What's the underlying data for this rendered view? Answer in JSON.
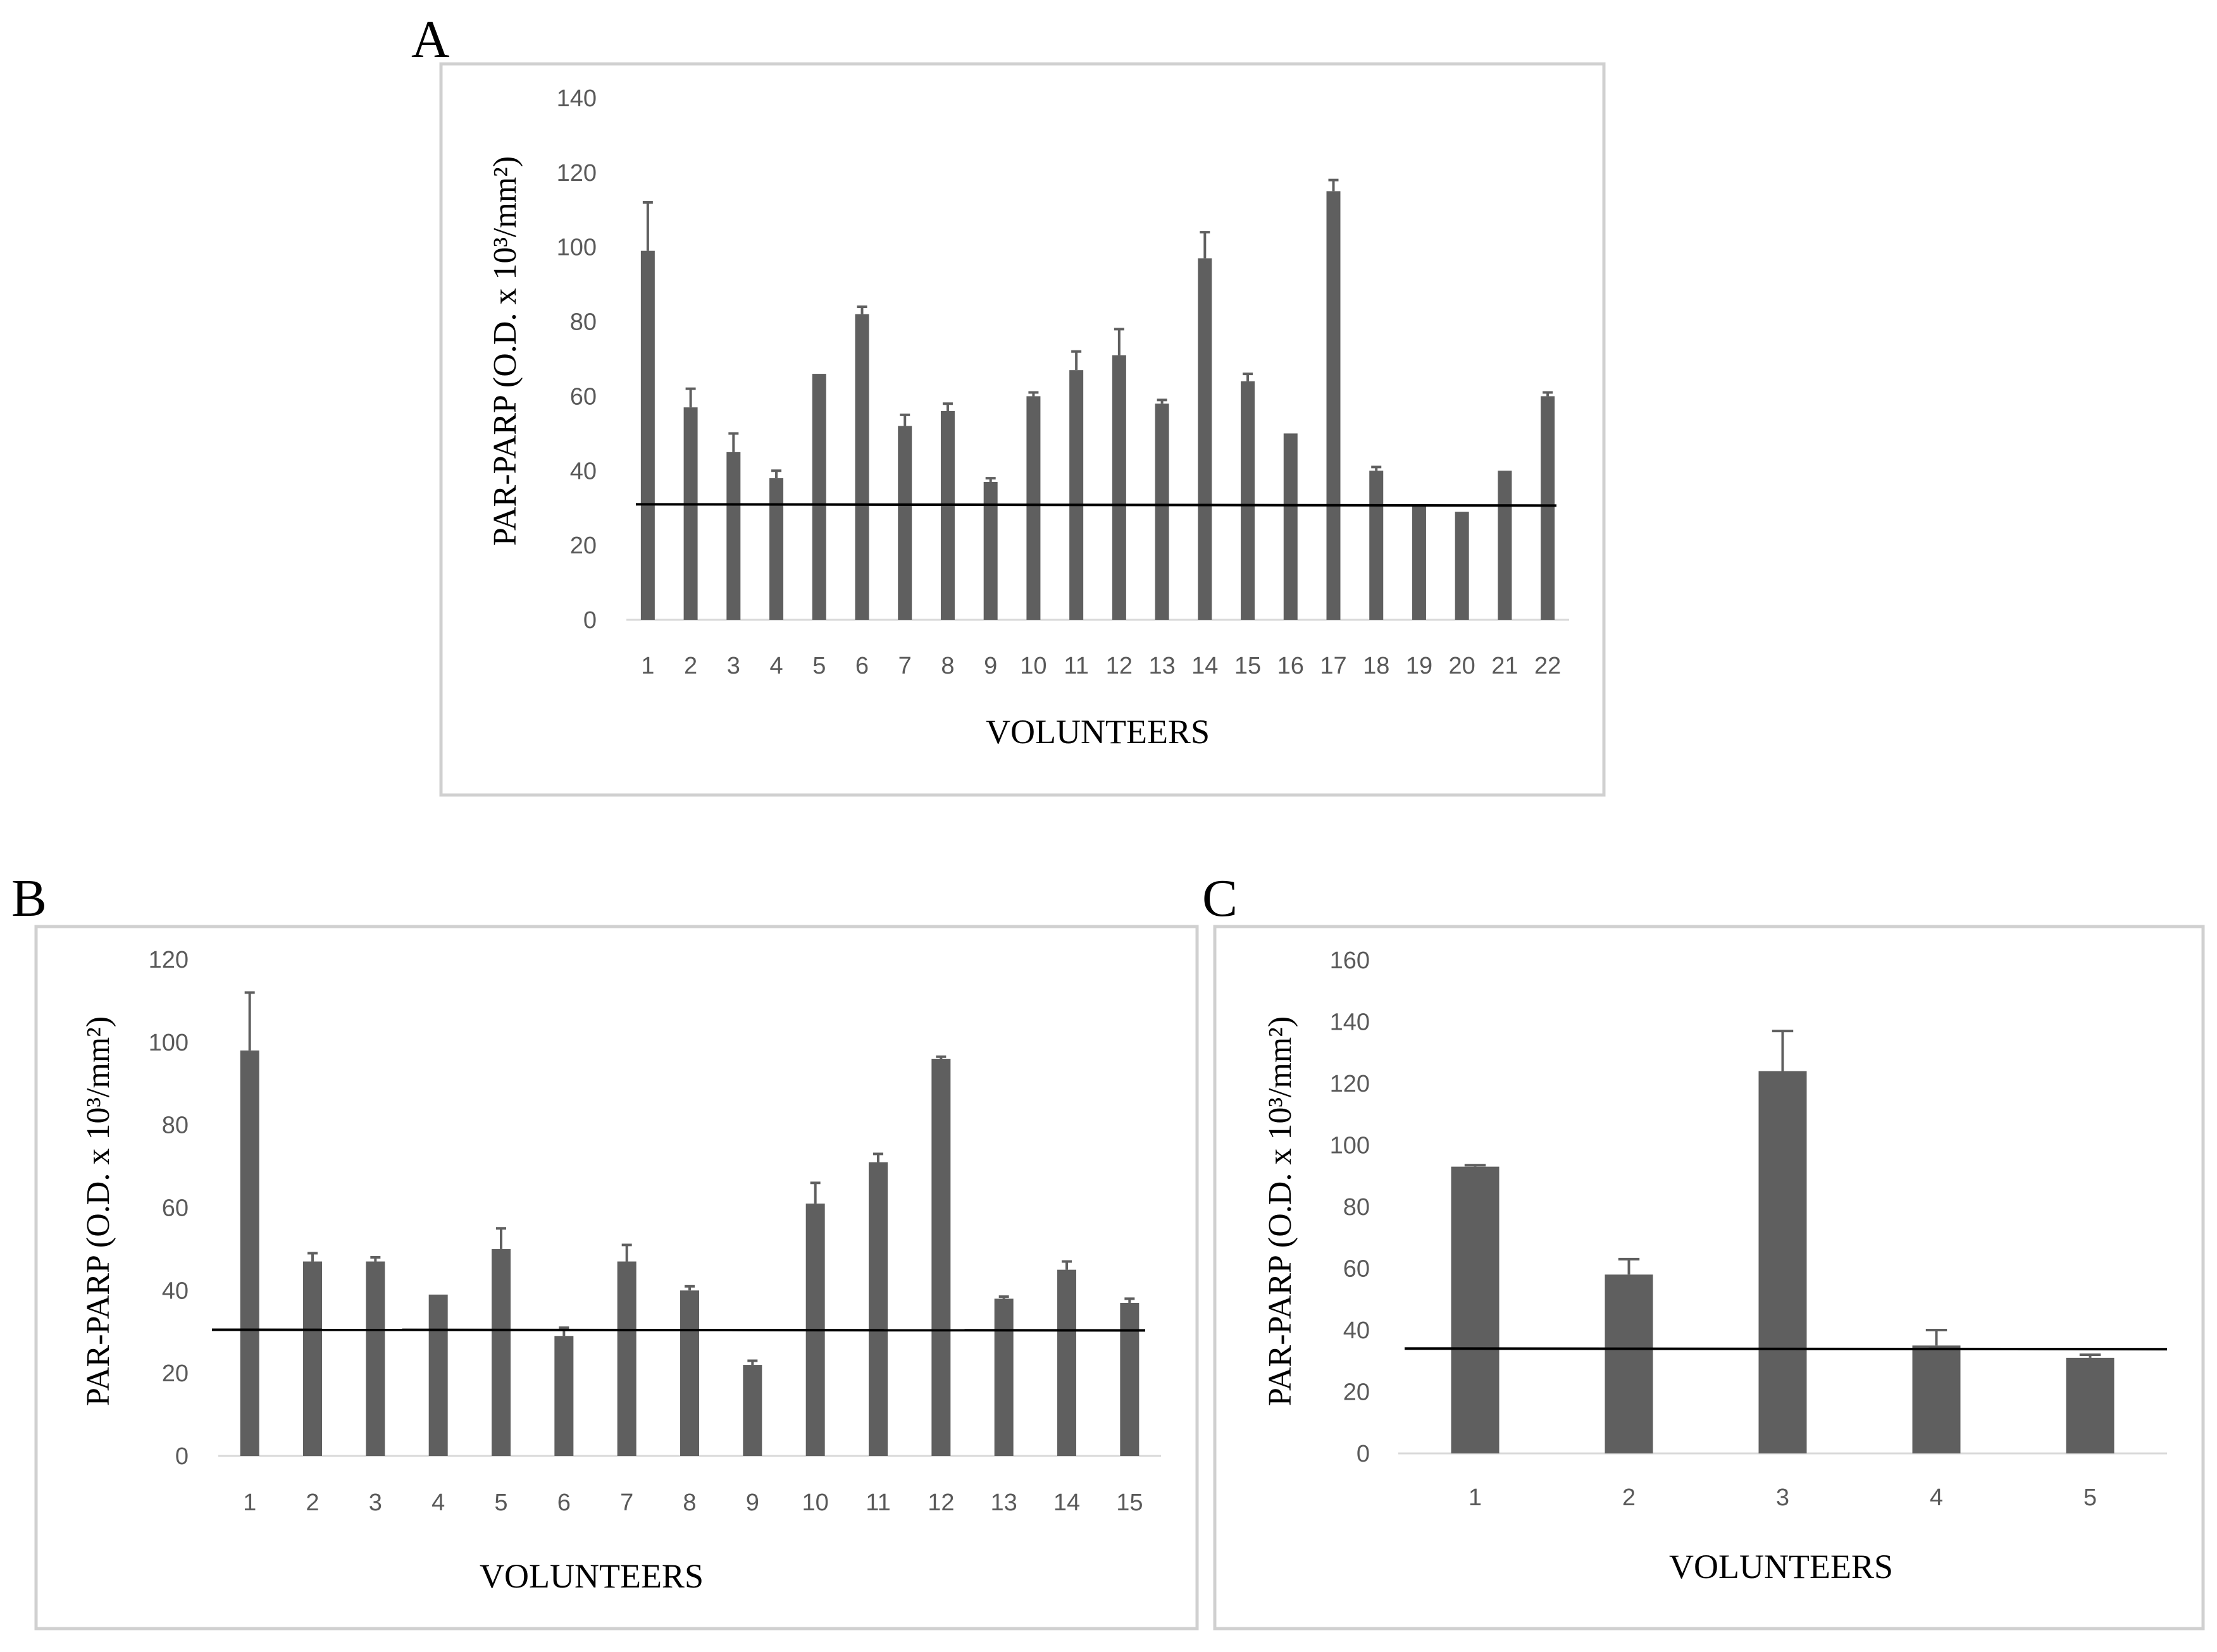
{
  "chart_data": [
    {
      "type": "bar",
      "panel": "A",
      "categories": [
        "1",
        "2",
        "3",
        "4",
        "5",
        "6",
        "7",
        "8",
        "9",
        "10",
        "11",
        "12",
        "13",
        "14",
        "15",
        "16",
        "17",
        "18",
        "19",
        "20",
        "21",
        "22"
      ],
      "values": [
        99,
        57,
        45,
        38,
        66,
        82,
        52,
        56,
        37,
        60,
        67,
        71,
        58,
        97,
        64,
        50,
        115,
        40,
        31,
        29,
        40,
        60
      ],
      "errors": [
        13,
        5,
        5,
        2,
        0,
        2,
        3,
        2,
        1,
        1,
        5,
        7,
        1,
        7,
        2,
        0,
        3,
        1,
        0,
        0,
        0,
        1
      ],
      "threshold": 31,
      "xlabel": "VOLUNTEERS",
      "ylabel": "PAR-PARP (O.D. x 10³/mm²)",
      "ylim": [
        0,
        140
      ],
      "yticks": [
        0,
        20,
        40,
        60,
        80,
        100,
        120,
        140
      ]
    },
    {
      "type": "bar",
      "panel": "B",
      "categories": [
        "1",
        "2",
        "3",
        "4",
        "5",
        "6",
        "7",
        "8",
        "9",
        "10",
        "11",
        "12",
        "13",
        "14",
        "15"
      ],
      "values": [
        98,
        47,
        47,
        39,
        50,
        29,
        47,
        40,
        22,
        61,
        71,
        96,
        38,
        45,
        37
      ],
      "errors": [
        14,
        2,
        1,
        0,
        5,
        2,
        4,
        1,
        1,
        5,
        2,
        0.5,
        0.5,
        2,
        1
      ],
      "threshold": 30.5,
      "xlabel": "VOLUNTEERS",
      "ylabel": "PAR-PARP (O.D. x 10³/mm²)",
      "ylim": [
        0,
        120
      ],
      "yticks": [
        0,
        20,
        40,
        60,
        80,
        100,
        120
      ]
    },
    {
      "type": "bar",
      "panel": "C",
      "categories": [
        "1",
        "2",
        "3",
        "4",
        "5"
      ],
      "values": [
        93,
        58,
        124,
        35,
        31
      ],
      "errors": [
        0.5,
        5,
        13,
        5,
        1
      ],
      "threshold": 34,
      "xlabel": "VOLUNTEERS",
      "ylabel": "PAR-PARP (O.D. x 10³/mm²)",
      "ylim": [
        0,
        160
      ],
      "yticks": [
        0,
        20,
        40,
        60,
        80,
        100,
        120,
        140,
        160
      ]
    }
  ]
}
